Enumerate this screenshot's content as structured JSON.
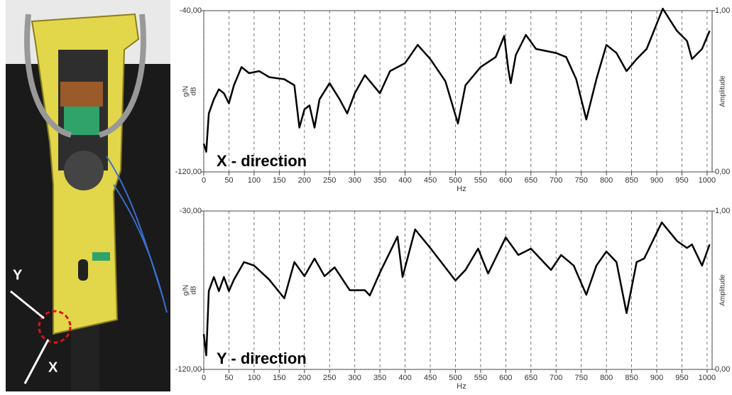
{
  "photo": {
    "labels": [
      "Y",
      "X"
    ]
  },
  "chart_data": [
    {
      "type": "line",
      "annotation": "X - direction",
      "xlabel": "Hz",
      "ylabel": [
        "g/N",
        "dB"
      ],
      "y2label": "Amplitude",
      "xlim": [
        0,
        1010
      ],
      "xticks": [
        0,
        50,
        100,
        150,
        200,
        250,
        300,
        350,
        400,
        450,
        500,
        550,
        600,
        650,
        700,
        750,
        800,
        850,
        900,
        950,
        1000
      ],
      "ylim": [
        -120,
        -40
      ],
      "yticks": [
        {
          "value": -40,
          "label": "-40,00"
        },
        {
          "value": -120,
          "label": "-120,00"
        }
      ],
      "y2lim": [
        0,
        1
      ],
      "y2ticks": [
        {
          "value": 1,
          "label": "1,00"
        },
        {
          "value": 0,
          "label": "0,00"
        }
      ],
      "grid": true,
      "x": [
        0,
        5,
        10,
        20,
        30,
        40,
        50,
        60,
        75,
        90,
        110,
        130,
        160,
        180,
        190,
        200,
        210,
        220,
        230,
        250,
        270,
        285,
        300,
        320,
        350,
        370,
        400,
        425,
        450,
        480,
        505,
        520,
        550,
        580,
        597,
        605,
        610,
        620,
        640,
        660,
        700,
        720,
        740,
        760,
        780,
        800,
        820,
        840,
        860,
        880,
        912,
        940,
        960,
        970,
        990,
        1005
      ],
      "series": [
        {
          "color": "#000000",
          "values": [
            -106,
            -110,
            -91,
            -84,
            -79,
            -81,
            -86,
            -77,
            -68,
            -71,
            -70,
            -73,
            -74,
            -77,
            -98,
            -89,
            -87,
            -98,
            -84,
            -76,
            -84,
            -91,
            -81,
            -72,
            -81,
            -70,
            -66,
            -57,
            -64,
            -75,
            -96,
            -77,
            -68,
            -63,
            -52.5,
            -69,
            -76,
            -62,
            -52,
            -59,
            -61,
            -63,
            -74,
            -94,
            -74,
            -57,
            -61,
            -70,
            -64,
            -59,
            -39,
            -50,
            -55,
            -64,
            -59,
            -50
          ]
        }
      ]
    },
    {
      "type": "line",
      "annotation": "Y - direction",
      "xlabel": "Hz",
      "ylabel": [
        "g/N",
        "dB"
      ],
      "y2label": "Amplitude",
      "xlim": [
        0,
        1010
      ],
      "xticks": [
        0,
        50,
        100,
        150,
        200,
        250,
        300,
        350,
        400,
        450,
        500,
        550,
        600,
        650,
        700,
        750,
        800,
        850,
        900,
        950,
        1000
      ],
      "ylim": [
        -120,
        -30
      ],
      "yticks": [
        {
          "value": -30,
          "label": "-30,00"
        },
        {
          "value": -120,
          "label": "-120,00"
        }
      ],
      "y2lim": [
        0,
        1
      ],
      "y2ticks": [
        {
          "value": 1,
          "label": "1,00"
        },
        {
          "value": 0,
          "label": "0,00"
        }
      ],
      "grid": true,
      "x": [
        0,
        5,
        10,
        20,
        30,
        40,
        50,
        60,
        80,
        100,
        130,
        160,
        180,
        200,
        220,
        240,
        260,
        290,
        320,
        330,
        350,
        385,
        395,
        420,
        450,
        500,
        520,
        545,
        565,
        600,
        625,
        650,
        690,
        710,
        735,
        760,
        780,
        800,
        820,
        840,
        860,
        875,
        910,
        940,
        960,
        970,
        990,
        1005
      ],
      "series": [
        {
          "color": "#000000",
          "values": [
            -100,
            -112,
            -75.5,
            -67.5,
            -75.5,
            -67.5,
            -75.5,
            -69,
            -59,
            -61,
            -69,
            -79.6,
            -59,
            -67,
            -57,
            -67,
            -62,
            -75,
            -75,
            -78,
            -65,
            -44.5,
            -67.5,
            -40.5,
            -51,
            -69.5,
            -63.5,
            -51.4,
            -65.5,
            -45,
            -55,
            -51.4,
            -63.5,
            -55,
            -61,
            -77.6,
            -61,
            -53,
            -59,
            -88,
            -59,
            -57,
            -36.5,
            -47,
            -51,
            -49,
            -61,
            -49
          ]
        }
      ]
    }
  ]
}
